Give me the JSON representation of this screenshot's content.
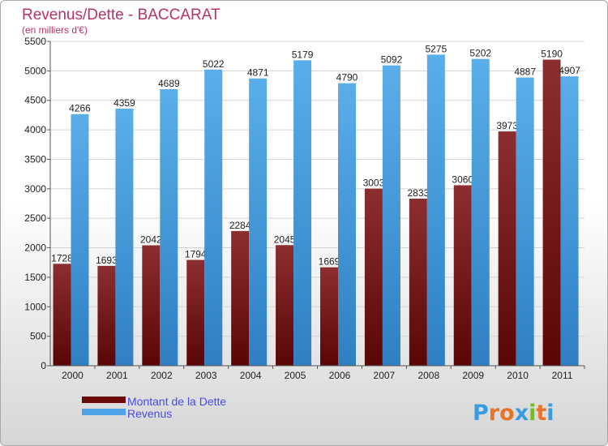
{
  "chart_data": {
    "type": "bar",
    "title": "Revenus/Dette - BACCARAT",
    "subtitle": "(en milliers d'€)",
    "categories": [
      "2000",
      "2001",
      "2002",
      "2003",
      "2004",
      "2005",
      "2006",
      "2007",
      "2008",
      "2009",
      "2010",
      "2011"
    ],
    "series": [
      {
        "name": "Montant de la Dette",
        "color": "#7a1c1c",
        "values": [
          1728,
          1693,
          2042,
          1794,
          2284,
          2045,
          1669,
          3003,
          2833,
          3060,
          3973,
          5190
        ]
      },
      {
        "name": "Revenus",
        "color": "#4ea3e6",
        "values": [
          4266,
          4359,
          4689,
          5022,
          4871,
          5179,
          4790,
          5092,
          5275,
          5202,
          4887,
          4907
        ]
      }
    ],
    "ylim": [
      0,
      5500
    ],
    "yticks": [
      0,
      500,
      1000,
      1500,
      2000,
      2500,
      3000,
      3500,
      4000,
      4500,
      5000,
      5500
    ],
    "grid": true,
    "legend": "bottom-left"
  },
  "logo": {
    "letters": [
      "P",
      "r",
      "o",
      "x",
      "i",
      "t",
      "i"
    ],
    "colors": [
      "#3a9be0",
      "#e8742a",
      "#e8742a",
      "#3a9be0",
      "#78b82a",
      "#e8742a",
      "#3a9be0"
    ]
  }
}
